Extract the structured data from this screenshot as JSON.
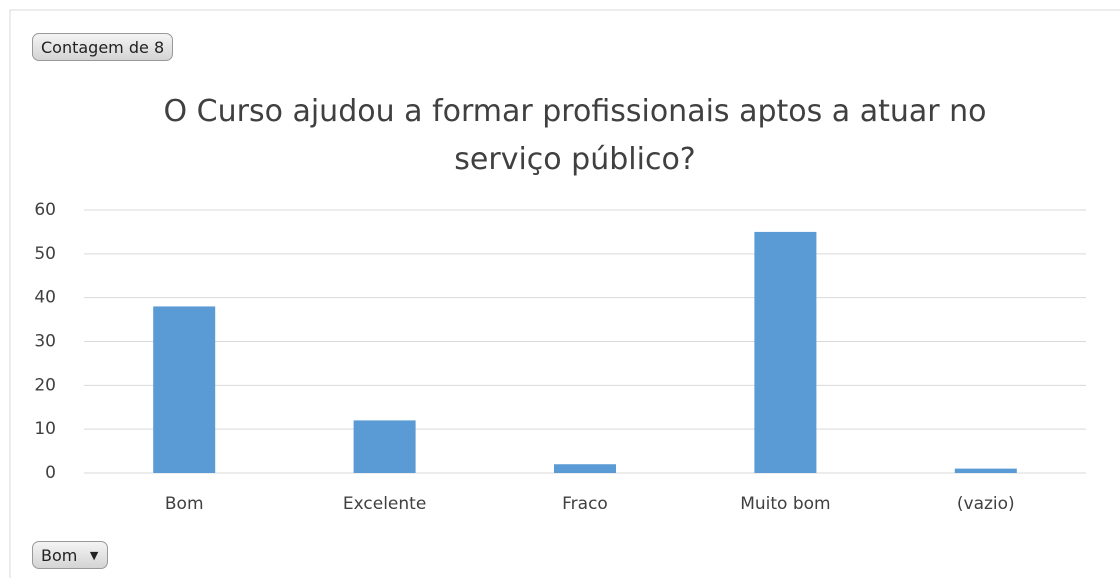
{
  "chart_data": {
    "type": "bar",
    "title": "O Curso ajudou a formar profissionais aptos a atuar no serviço público?",
    "value_field_button": "Contagem de 8",
    "axis_field_button": "Bom",
    "categories": [
      "Bom",
      "Excelente",
      "Fraco",
      "Muito bom",
      "(vazio)"
    ],
    "values": [
      38,
      12,
      2,
      55,
      1
    ],
    "color": "#5b9bd5",
    "ylim": [
      0,
      60
    ],
    "yticks": [
      0,
      10,
      20,
      30,
      40,
      50,
      60
    ],
    "grid": true
  }
}
